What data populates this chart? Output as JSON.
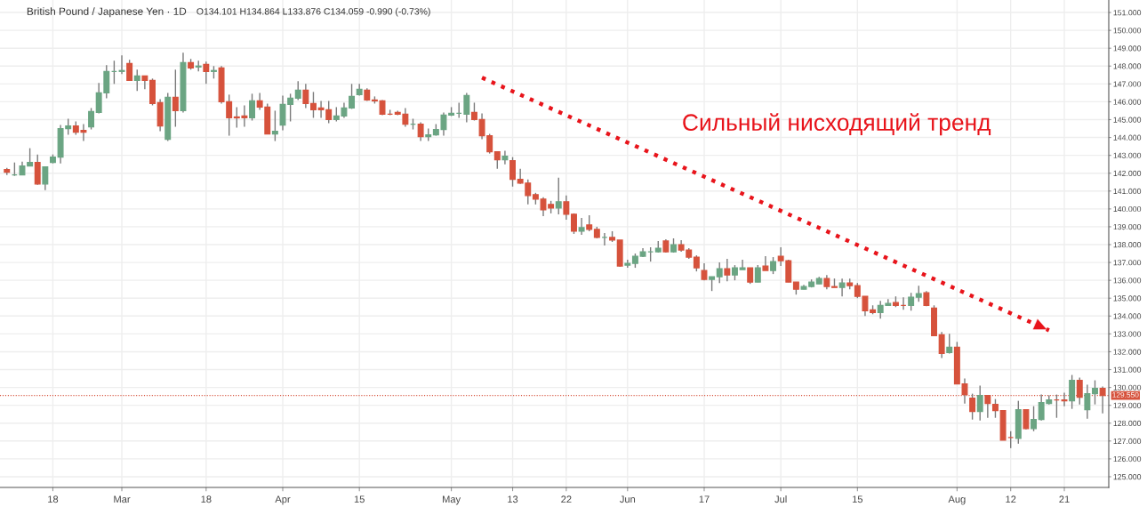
{
  "chart_data": {
    "type": "candlestick",
    "title": "British Pound / Japanese Yen · 1D",
    "subtitle": "O134.101 H134.864 L133.876 C134.059 -0.990 (-0.73%)",
    "annotations": [
      "Сильный нисходящий тренд"
    ],
    "categories": [
      null,
      null,
      null,
      null,
      null,
      null,
      "18",
      null,
      null,
      null,
      null,
      null,
      null,
      null,
      null,
      "Mar",
      null,
      null,
      null,
      null,
      null,
      null,
      null,
      null,
      null,
      null,
      "18",
      null,
      null,
      null,
      null,
      null,
      null,
      null,
      null,
      null,
      "Apr",
      null,
      null,
      null,
      null,
      null,
      null,
      null,
      null,
      null,
      "15",
      null,
      null,
      null,
      null,
      null,
      null,
      null,
      null,
      null,
      null,
      null,
      "May",
      null,
      null,
      null,
      null,
      null,
      null,
      null,
      "13",
      null,
      null,
      null,
      null,
      null,
      null,
      "22",
      null,
      null,
      null,
      null,
      null,
      null,
      null,
      "Jun",
      null,
      null,
      null,
      null,
      null,
      null,
      null,
      null,
      null,
      "17",
      null,
      null,
      null,
      null,
      null,
      null,
      null,
      null,
      null,
      "Jul",
      null,
      null,
      null,
      null,
      null,
      null,
      null,
      null,
      null,
      "15",
      null,
      null,
      null,
      null,
      null,
      null,
      null,
      null,
      null,
      null,
      null,
      null,
      "Aug",
      null,
      null,
      null,
      null,
      null,
      null,
      "12",
      null,
      null,
      null,
      null,
      null,
      null,
      "21",
      null,
      null,
      null,
      null,
      null
    ],
    "ohlc": [
      [
        142.2,
        142.3,
        141.9,
        142.05
      ],
      [
        141.9,
        142.6,
        141.85,
        141.9
      ],
      [
        141.9,
        142.65,
        141.9,
        142.4
      ],
      [
        142.4,
        143.4,
        142.4,
        142.6
      ],
      [
        142.6,
        143.05,
        141.35,
        141.4
      ],
      [
        141.4,
        142.35,
        141.05,
        142.35
      ],
      [
        142.6,
        143.05,
        142.55,
        142.9
      ],
      [
        142.9,
        144.7,
        142.55,
        144.5
      ],
      [
        144.5,
        145.05,
        144.15,
        144.65
      ],
      [
        144.65,
        144.9,
        144.15,
        144.3
      ],
      [
        144.4,
        144.75,
        143.8,
        144.3
      ],
      [
        144.6,
        145.65,
        144.45,
        145.45
      ],
      [
        145.4,
        147.05,
        145.35,
        146.5
      ],
      [
        146.5,
        148.05,
        146.2,
        147.7
      ],
      [
        147.7,
        148.3,
        147.0,
        147.7
      ],
      [
        147.7,
        148.6,
        147.55,
        147.75
      ],
      [
        148.15,
        148.35,
        147.2,
        147.2
      ],
      [
        147.2,
        147.8,
        146.6,
        147.45
      ],
      [
        147.45,
        147.45,
        146.7,
        147.2
      ],
      [
        147.2,
        147.3,
        145.8,
        145.9
      ],
      [
        145.95,
        146.15,
        144.35,
        144.65
      ],
      [
        143.9,
        146.5,
        143.8,
        146.25
      ],
      [
        146.25,
        147.8,
        144.6,
        145.5
      ],
      [
        145.5,
        148.75,
        145.4,
        148.2
      ],
      [
        148.2,
        148.4,
        147.8,
        147.9
      ],
      [
        147.95,
        148.3,
        147.7,
        148.0
      ],
      [
        148.1,
        148.25,
        147.0,
        147.7
      ],
      [
        147.7,
        148.0,
        147.3,
        147.75
      ],
      [
        147.9,
        148.0,
        145.9,
        146.0
      ],
      [
        146.0,
        146.4,
        144.1,
        145.1
      ],
      [
        145.15,
        145.7,
        144.55,
        145.1
      ],
      [
        145.2,
        145.8,
        144.6,
        145.1
      ],
      [
        145.1,
        146.45,
        144.95,
        146.05
      ],
      [
        146.05,
        146.5,
        145.55,
        145.7
      ],
      [
        145.7,
        145.9,
        144.2,
        144.2
      ],
      [
        144.2,
        145.5,
        143.8,
        144.35
      ],
      [
        144.7,
        146.35,
        144.4,
        145.85
      ],
      [
        145.85,
        146.45,
        144.9,
        146.2
      ],
      [
        146.2,
        147.15,
        146.1,
        146.65
      ],
      [
        146.65,
        147.0,
        145.65,
        145.9
      ],
      [
        145.9,
        146.55,
        145.1,
        145.55
      ],
      [
        145.65,
        146.05,
        145.1,
        145.55
      ],
      [
        145.55,
        146.05,
        144.8,
        145.0
      ],
      [
        145.0,
        145.7,
        144.9,
        145.2
      ],
      [
        145.2,
        145.95,
        145.1,
        145.65
      ],
      [
        145.65,
        147.0,
        145.6,
        146.3
      ],
      [
        146.4,
        147.0,
        146.35,
        146.7
      ],
      [
        146.65,
        146.75,
        146.05,
        146.1
      ],
      [
        146.1,
        146.3,
        145.9,
        146.05
      ],
      [
        146.05,
        146.1,
        145.25,
        145.3
      ],
      [
        145.3,
        145.55,
        145.25,
        145.3
      ],
      [
        145.4,
        145.5,
        145.25,
        145.3
      ],
      [
        145.3,
        145.65,
        144.6,
        144.75
      ],
      [
        144.75,
        145.05,
        144.45,
        144.75
      ],
      [
        144.75,
        144.85,
        143.8,
        144.05
      ],
      [
        144.05,
        144.5,
        143.8,
        144.15
      ],
      [
        144.15,
        144.75,
        144.1,
        144.45
      ],
      [
        144.45,
        145.4,
        144.1,
        145.25
      ],
      [
        145.25,
        145.7,
        145.2,
        145.35
      ],
      [
        145.35,
        145.95,
        145.1,
        145.35
      ],
      [
        145.3,
        146.5,
        144.85,
        146.35
      ],
      [
        145.4,
        145.95,
        144.95,
        145.0
      ],
      [
        145.0,
        145.35,
        143.9,
        144.1
      ],
      [
        144.1,
        144.2,
        143.1,
        143.2
      ],
      [
        143.2,
        143.2,
        142.25,
        142.75
      ],
      [
        142.75,
        143.25,
        142.5,
        142.95
      ],
      [
        142.7,
        142.9,
        141.25,
        141.65
      ],
      [
        141.65,
        142.25,
        141.4,
        141.45
      ],
      [
        141.45,
        141.65,
        140.25,
        140.75
      ],
      [
        140.8,
        140.9,
        140.25,
        140.55
      ],
      [
        140.55,
        140.65,
        139.6,
        139.95
      ],
      [
        140.25,
        140.45,
        139.75,
        140.05
      ],
      [
        140.05,
        141.75,
        139.7,
        140.4
      ],
      [
        140.4,
        140.75,
        139.4,
        139.7
      ],
      [
        139.7,
        139.75,
        138.6,
        138.75
      ],
      [
        138.75,
        139.5,
        138.55,
        138.95
      ],
      [
        139.1,
        139.65,
        138.75,
        138.85
      ],
      [
        138.85,
        139.0,
        138.35,
        138.4
      ],
      [
        138.4,
        138.65,
        137.95,
        138.4
      ],
      [
        138.4,
        138.75,
        138.15,
        138.25
      ],
      [
        138.25,
        138.25,
        136.75,
        136.8
      ],
      [
        136.85,
        137.15,
        136.7,
        136.95
      ],
      [
        136.95,
        137.5,
        136.7,
        137.35
      ],
      [
        137.35,
        137.8,
        137.3,
        137.6
      ],
      [
        137.6,
        137.85,
        137.05,
        137.6
      ],
      [
        137.6,
        138.2,
        137.55,
        137.8
      ],
      [
        138.2,
        138.3,
        137.55,
        137.6
      ],
      [
        137.6,
        138.35,
        137.55,
        138.0
      ],
      [
        138.0,
        138.25,
        137.6,
        137.7
      ],
      [
        137.7,
        137.8,
        137.2,
        137.3
      ],
      [
        137.3,
        137.4,
        136.5,
        136.7
      ],
      [
        136.55,
        136.95,
        136.0,
        136.05
      ],
      [
        136.05,
        136.2,
        135.4,
        136.2
      ],
      [
        136.2,
        137.0,
        135.85,
        136.65
      ],
      [
        136.65,
        137.2,
        135.95,
        136.3
      ],
      [
        136.3,
        136.85,
        136.0,
        136.7
      ],
      [
        136.6,
        137.15,
        136.6,
        136.7
      ],
      [
        136.7,
        136.7,
        135.8,
        135.9
      ],
      [
        135.9,
        136.85,
        135.9,
        136.7
      ],
      [
        136.8,
        137.35,
        136.55,
        136.55
      ],
      [
        136.55,
        137.3,
        136.35,
        137.05
      ],
      [
        137.35,
        137.85,
        136.8,
        137.1
      ],
      [
        137.1,
        137.15,
        135.9,
        135.9
      ],
      [
        135.9,
        135.9,
        135.2,
        135.5
      ],
      [
        135.5,
        135.75,
        135.5,
        135.65
      ],
      [
        135.65,
        136.05,
        135.6,
        135.9
      ],
      [
        135.8,
        136.2,
        135.8,
        136.1
      ],
      [
        136.1,
        136.3,
        135.5,
        135.65
      ],
      [
        135.65,
        136.1,
        135.6,
        135.6
      ],
      [
        135.6,
        136.1,
        135.1,
        135.85
      ],
      [
        135.85,
        136.1,
        135.5,
        135.7
      ],
      [
        135.7,
        135.85,
        135.0,
        135.1
      ],
      [
        135.1,
        135.1,
        134.0,
        134.3
      ],
      [
        134.35,
        134.6,
        134.1,
        134.2
      ],
      [
        134.2,
        134.85,
        133.85,
        134.6
      ],
      [
        134.6,
        134.95,
        134.6,
        134.7
      ],
      [
        134.75,
        135.1,
        134.5,
        134.6
      ],
      [
        134.6,
        135.05,
        134.35,
        134.6
      ],
      [
        134.6,
        135.3,
        134.3,
        135.05
      ],
      [
        135.05,
        135.7,
        134.8,
        135.25
      ],
      [
        135.3,
        135.4,
        134.55,
        134.6
      ],
      [
        134.45,
        134.6,
        132.9,
        132.9
      ],
      [
        132.95,
        133.1,
        131.65,
        131.9
      ],
      [
        131.95,
        133.0,
        131.9,
        132.25
      ],
      [
        132.25,
        132.55,
        130.2,
        130.2
      ],
      [
        130.2,
        130.5,
        129.1,
        129.6
      ],
      [
        129.4,
        129.65,
        128.2,
        128.65
      ],
      [
        128.65,
        130.1,
        128.15,
        129.55
      ],
      [
        129.55,
        129.55,
        128.3,
        129.1
      ],
      [
        129.05,
        129.35,
        128.3,
        128.7
      ],
      [
        128.7,
        128.7,
        127.05,
        127.05
      ],
      [
        127.2,
        127.55,
        126.6,
        127.2
      ],
      [
        127.15,
        129.25,
        126.85,
        128.75
      ],
      [
        128.75,
        128.75,
        127.65,
        127.7
      ],
      [
        127.7,
        128.95,
        127.55,
        128.2
      ],
      [
        128.2,
        129.6,
        128.15,
        129.15
      ],
      [
        129.1,
        129.55,
        129.05,
        129.3
      ],
      [
        129.3,
        129.6,
        128.3,
        129.3
      ],
      [
        129.3,
        129.7,
        128.95,
        129.25
      ],
      [
        129.25,
        130.7,
        128.8,
        130.4
      ],
      [
        130.4,
        130.55,
        129.05,
        129.45
      ],
      [
        128.75,
        130.15,
        128.25,
        129.65
      ],
      [
        129.65,
        130.4,
        129.05,
        129.95
      ],
      [
        129.95,
        130.05,
        128.55,
        129.55
      ]
    ],
    "colors": [
      "#d6523c",
      "#6ba583",
      "#6ba583",
      "#6ba583",
      "#d6523c",
      "#6ba583",
      "#6ba583",
      "#6ba583",
      "#6ba583",
      "#d6523c",
      "#d6523c",
      "#6ba583",
      "#6ba583",
      "#6ba583",
      "#6ba583",
      "#6ba583",
      "#d6523c",
      "#6ba583",
      "#d6523c",
      "#d6523c",
      "#d6523c",
      "#6ba583",
      "#d6523c",
      "#6ba583",
      "#d6523c",
      "#6ba583",
      "#d6523c",
      "#6ba583",
      "#d6523c",
      "#d6523c",
      "#d6523c",
      "#d6523c",
      "#6ba583",
      "#d6523c",
      "#d6523c",
      "#6ba583",
      "#6ba583",
      "#6ba583",
      "#6ba583",
      "#d6523c",
      "#d6523c",
      "#d6523c",
      "#d6523c",
      "#6ba583",
      "#6ba583",
      "#6ba583",
      "#6ba583",
      "#d6523c",
      "#d6523c",
      "#d6523c",
      "#d6523c",
      "#d6523c",
      "#d6523c",
      "#6ba583",
      "#d6523c",
      "#6ba583",
      "#6ba583",
      "#6ba583",
      "#6ba583",
      "#6ba583",
      "#6ba583",
      "#d6523c",
      "#d6523c",
      "#d6523c",
      "#d6523c",
      "#6ba583",
      "#d6523c",
      "#d6523c",
      "#d6523c",
      "#d6523c",
      "#d6523c",
      "#d6523c",
      "#6ba583",
      "#d6523c",
      "#d6523c",
      "#6ba583",
      "#d6523c",
      "#d6523c",
      "#6ba583",
      "#d6523c",
      "#d6523c",
      "#6ba583",
      "#6ba583",
      "#6ba583",
      "#6ba583",
      "#6ba583",
      "#d6523c",
      "#6ba583",
      "#d6523c",
      "#d6523c",
      "#d6523c",
      "#d6523c",
      "#6ba583",
      "#6ba583",
      "#d6523c",
      "#6ba583",
      "#6ba583",
      "#d6523c",
      "#6ba583",
      "#d6523c",
      "#6ba583",
      "#d6523c",
      "#d6523c",
      "#d6523c",
      "#6ba583",
      "#6ba583",
      "#6ba583",
      "#d6523c",
      "#d6523c",
      "#6ba583",
      "#d6523c",
      "#d6523c",
      "#d6523c",
      "#d6523c",
      "#6ba583",
      "#6ba583",
      "#d6523c",
      "#d6523c",
      "#6ba583",
      "#6ba583",
      "#d6523c",
      "#d6523c",
      "#d6523c",
      "#6ba583",
      "#d6523c",
      "#d6523c",
      "#d6523c",
      "#6ba583",
      "#d6523c",
      "#d6523c",
      "#d6523c",
      "#d6523c",
      "#6ba583",
      "#d6523c",
      "#6ba583",
      "#6ba583",
      "#6ba583",
      "#d6523c",
      "#d6523c",
      "#6ba583",
      "#d6523c",
      "#6ba583",
      "#6ba583",
      "#d6523c"
    ],
    "series": [
      {
        "type": "line",
        "color": "#e8141b",
        "line_style": "dotted",
        "values": [
          null,
          null,
          null,
          null,
          null,
          null,
          null,
          null,
          null,
          null,
          null,
          null,
          null,
          null,
          null,
          null,
          null,
          null,
          null,
          null,
          null,
          null,
          null,
          null,
          null,
          null,
          null,
          null,
          null,
          null,
          null,
          null,
          null,
          null,
          null,
          null,
          null,
          null,
          null,
          null,
          null,
          null,
          null,
          null,
          null,
          null,
          null,
          null,
          null,
          null,
          null,
          null,
          null,
          null,
          null,
          null,
          null,
          null,
          null,
          null,
          null,
          null,
          147.35,
          null,
          null,
          null,
          null,
          null,
          null,
          null,
          null,
          null,
          null,
          null,
          null,
          null,
          null,
          null,
          null,
          null,
          null,
          null,
          null,
          null,
          null,
          null,
          null,
          null,
          null,
          null,
          null,
          null,
          null,
          null,
          null,
          null,
          null,
          null,
          null,
          null,
          null,
          null,
          null,
          null,
          null,
          null,
          null,
          null,
          null,
          null,
          null,
          null,
          null,
          null,
          null,
          null,
          null,
          null,
          null,
          null,
          null,
          null,
          null,
          null,
          null,
          null,
          null,
          null,
          null,
          null,
          null,
          null,
          null,
          null,
          null,
          null,
          133.2,
          null,
          null,
          null,
          null,
          null,
          null,
          null
        ]
      }
    ],
    "ref_lines": [
      {
        "axis": "y",
        "value": 129.55,
        "label": "129.550",
        "color": "#d6523c",
        "line_style": "dotted"
      }
    ],
    "ylim": [
      124.4,
      151.7
    ],
    "yticks": [
      {
        "value": 125,
        "label": "125.000"
      },
      {
        "value": 126,
        "label": "126.000"
      },
      {
        "value": 127,
        "label": "127.000"
      },
      {
        "value": 128,
        "label": "128.000"
      },
      {
        "value": 129,
        "label": "129.000"
      },
      {
        "value": 130,
        "label": "130.000"
      },
      {
        "value": 131,
        "label": "131.000"
      },
      {
        "value": 132,
        "label": "132.000"
      },
      {
        "value": 133,
        "label": "133.000"
      },
      {
        "value": 134,
        "label": "134.000"
      },
      {
        "value": 135,
        "label": "135.000"
      },
      {
        "value": 136,
        "label": "136.000"
      },
      {
        "value": 137,
        "label": "137.000"
      },
      {
        "value": 138,
        "label": "138.000"
      },
      {
        "value": 139,
        "label": "139.000"
      },
      {
        "value": 140,
        "label": "140.000"
      },
      {
        "value": 141,
        "label": "141.000"
      },
      {
        "value": 142,
        "label": "142.000"
      },
      {
        "value": 143,
        "label": "143.000"
      },
      {
        "value": 144,
        "label": "144.000"
      },
      {
        "value": 145,
        "label": "145.000"
      },
      {
        "value": 146,
        "label": "146.000"
      },
      {
        "value": 147,
        "label": "147.000"
      },
      {
        "value": 148,
        "label": "148.000"
      },
      {
        "value": 149,
        "label": "149.000"
      },
      {
        "value": 150,
        "label": "150.000"
      },
      {
        "value": 151,
        "label": "151.000"
      }
    ],
    "grid": true
  }
}
